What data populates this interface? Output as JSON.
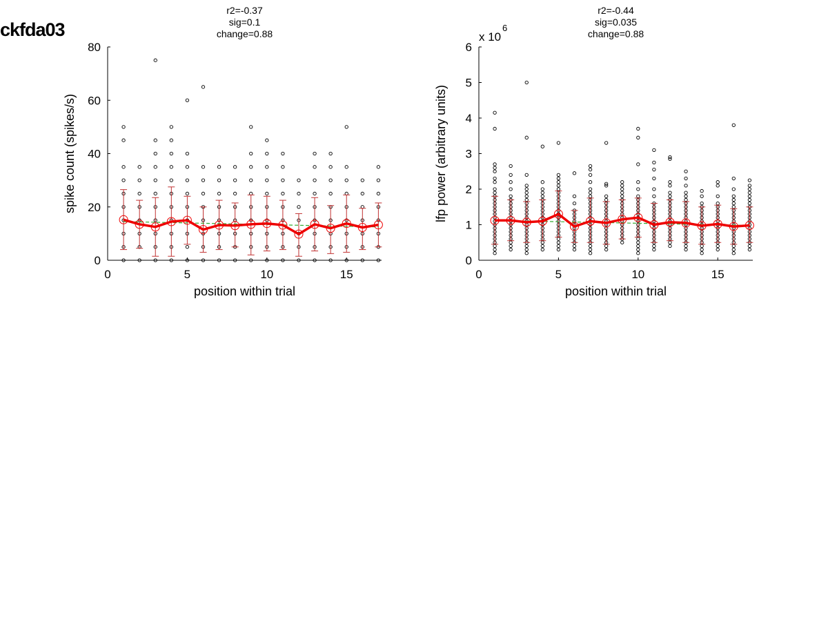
{
  "figure": {
    "title": "ckfda03"
  },
  "chart_data": [
    {
      "type": "scatter",
      "stats": [
        "r2=-0.37",
        "sig=0.1",
        "change=0.88"
      ],
      "xlabel": "position within trial",
      "ylabel": "spike count (spikes/s)",
      "xlim": [
        0,
        17.2
      ],
      "ylim": [
        0,
        80
      ],
      "x_ticks": [
        0,
        5,
        10,
        15
      ],
      "y_ticks": [
        0,
        20,
        40,
        60,
        80
      ],
      "x": [
        1,
        2,
        3,
        4,
        5,
        6,
        7,
        8,
        9,
        10,
        11,
        12,
        13,
        14,
        15,
        16,
        17
      ],
      "mean": [
        15.2,
        13.5,
        12.5,
        14.5,
        15.0,
        11.5,
        13.2,
        13.0,
        13.5,
        13.8,
        13.2,
        9.8,
        13.5,
        12.0,
        13.8,
        12.3,
        13.3
      ],
      "error_low": [
        4,
        4.5,
        1.5,
        1.5,
        6,
        3,
        4,
        5,
        2,
        3.5,
        4,
        1.5,
        3.5,
        2.5,
        3,
        4,
        5
      ],
      "error_high": [
        26.5,
        22.5,
        23.5,
        27.5,
        24,
        20,
        22.5,
        21.5,
        24.5,
        24,
        22.5,
        17.5,
        23.5,
        20.5,
        24.5,
        19.5,
        21.5
      ],
      "trend": [
        14.5,
        12.5
      ],
      "scatter_points": [
        [
          0,
          5,
          10,
          15,
          20,
          25,
          30,
          35,
          45,
          50
        ],
        [
          0,
          5,
          10,
          15,
          20,
          25,
          30,
          35
        ],
        [
          0,
          5,
          10,
          15,
          20,
          25,
          30,
          35,
          40,
          45,
          75
        ],
        [
          0,
          5,
          10,
          15,
          20,
          25,
          30,
          35,
          40,
          45,
          50
        ],
        [
          0,
          5,
          10,
          15,
          20,
          25,
          30,
          35,
          40,
          60
        ],
        [
          0,
          5,
          10,
          15,
          20,
          25,
          30,
          35,
          65
        ],
        [
          0,
          5,
          10,
          15,
          20,
          25,
          30,
          35
        ],
        [
          0,
          5,
          10,
          15,
          20,
          25,
          30,
          35
        ],
        [
          0,
          5,
          10,
          15,
          20,
          25,
          30,
          35,
          40,
          50
        ],
        [
          0,
          5,
          10,
          15,
          20,
          25,
          30,
          35,
          40,
          45
        ],
        [
          0,
          5,
          10,
          15,
          20,
          25,
          30,
          35,
          40
        ],
        [
          0,
          5,
          10,
          15,
          20,
          25,
          30
        ],
        [
          0,
          5,
          10,
          15,
          20,
          25,
          30,
          35,
          40
        ],
        [
          0,
          5,
          10,
          15,
          20,
          25,
          30,
          35,
          40
        ],
        [
          0,
          5,
          10,
          15,
          20,
          25,
          30,
          35,
          50
        ],
        [
          0,
          5,
          10,
          15,
          20,
          25,
          30
        ],
        [
          0,
          5,
          10,
          15,
          20,
          25,
          30,
          35
        ]
      ],
      "colors": {
        "mean_line": "#ee0000",
        "error_bars": "#c03030",
        "trend_line": "#33aa33",
        "points": "#000000"
      }
    },
    {
      "type": "scatter",
      "stats": [
        "r2=-0.44",
        "sig=0.035",
        "change=0.88"
      ],
      "xlabel": "position within trial",
      "ylabel": "lfp power (arbitrary units)",
      "y_multiplier": "x 10",
      "y_multiplier_exp": "6",
      "xlim": [
        0,
        17.2
      ],
      "ylim": [
        0,
        6
      ],
      "x_ticks": [
        0,
        5,
        10,
        15
      ],
      "y_ticks": [
        0,
        1,
        2,
        3,
        4,
        5,
        6
      ],
      "x": [
        1,
        2,
        3,
        4,
        5,
        6,
        7,
        8,
        9,
        10,
        11,
        12,
        13,
        14,
        15,
        16,
        17
      ],
      "mean": [
        1.12,
        1.12,
        1.07,
        1.1,
        1.3,
        0.95,
        1.1,
        1.05,
        1.15,
        1.2,
        1.0,
        1.07,
        1.05,
        0.97,
        1.02,
        0.95,
        0.98
      ],
      "error_low": [
        0.45,
        0.55,
        0.5,
        0.55,
        0.65,
        0.5,
        0.5,
        0.45,
        0.6,
        0.65,
        0.5,
        0.55,
        0.5,
        0.45,
        0.5,
        0.45,
        0.5
      ],
      "error_high": [
        1.8,
        1.7,
        1.65,
        1.7,
        1.95,
        1.4,
        1.75,
        1.65,
        1.7,
        1.75,
        1.6,
        1.7,
        1.65,
        1.5,
        1.55,
        1.45,
        1.5
      ],
      "trend": [
        1.12,
        0.98
      ],
      "scatter_points": [
        [
          0.2,
          0.3,
          0.4,
          0.5,
          0.6,
          0.7,
          0.8,
          0.9,
          1.0,
          1.1,
          1.2,
          1.3,
          1.4,
          1.5,
          1.6,
          1.7,
          1.8,
          1.9,
          2.0,
          2.2,
          2.3,
          2.5,
          2.6,
          2.7,
          3.7,
          4.15
        ],
        [
          0.3,
          0.4,
          0.5,
          0.6,
          0.7,
          0.8,
          0.9,
          1.0,
          1.1,
          1.2,
          1.3,
          1.4,
          1.5,
          1.6,
          1.7,
          1.8,
          2.0,
          2.2,
          2.4,
          2.65
        ],
        [
          0.2,
          0.3,
          0.4,
          0.5,
          0.6,
          0.7,
          0.8,
          0.9,
          1.0,
          1.1,
          1.2,
          1.3,
          1.4,
          1.5,
          1.6,
          1.7,
          1.8,
          1.9,
          2.0,
          2.1,
          2.4,
          3.45,
          5.0
        ],
        [
          0.3,
          0.4,
          0.5,
          0.6,
          0.7,
          0.8,
          0.9,
          1.0,
          1.1,
          1.2,
          1.3,
          1.4,
          1.5,
          1.6,
          1.7,
          1.8,
          1.9,
          2.0,
          2.2,
          3.2
        ],
        [
          0.3,
          0.4,
          0.5,
          0.6,
          0.7,
          0.8,
          0.9,
          1.0,
          1.1,
          1.2,
          1.3,
          1.4,
          1.5,
          1.6,
          1.7,
          1.8,
          1.9,
          2.0,
          2.1,
          2.2,
          2.3,
          2.4,
          3.3
        ],
        [
          0.3,
          0.4,
          0.5,
          0.6,
          0.7,
          0.8,
          0.9,
          1.0,
          1.1,
          1.2,
          1.3,
          1.4,
          1.6,
          1.8,
          2.45
        ],
        [
          0.2,
          0.3,
          0.4,
          0.5,
          0.6,
          0.7,
          0.8,
          0.9,
          1.0,
          1.1,
          1.2,
          1.3,
          1.4,
          1.5,
          1.6,
          1.7,
          1.8,
          1.9,
          2.0,
          2.2,
          2.4,
          2.55,
          2.65
        ],
        [
          0.3,
          0.4,
          0.5,
          0.6,
          0.7,
          0.8,
          0.9,
          1.0,
          1.1,
          1.2,
          1.3,
          1.4,
          1.5,
          1.6,
          1.7,
          1.8,
          2.1,
          2.15,
          3.3
        ],
        [
          0.5,
          0.6,
          0.7,
          0.8,
          0.9,
          1.0,
          1.1,
          1.2,
          1.3,
          1.4,
          1.5,
          1.6,
          1.7,
          1.8,
          1.9,
          2.0,
          2.1,
          2.2
        ],
        [
          0.2,
          0.3,
          0.4,
          0.5,
          0.6,
          0.7,
          0.8,
          0.9,
          1.0,
          1.1,
          1.2,
          1.3,
          1.4,
          1.5,
          1.6,
          1.7,
          1.8,
          2.0,
          2.2,
          2.7,
          3.45,
          3.7
        ],
        [
          0.3,
          0.4,
          0.5,
          0.6,
          0.7,
          0.8,
          0.9,
          1.0,
          1.1,
          1.2,
          1.3,
          1.4,
          1.5,
          1.6,
          1.8,
          2.0,
          2.3,
          2.55,
          2.75,
          3.1
        ],
        [
          0.4,
          0.5,
          0.6,
          0.7,
          0.8,
          0.9,
          1.0,
          1.1,
          1.2,
          1.3,
          1.4,
          1.5,
          1.6,
          1.7,
          1.8,
          1.9,
          2.1,
          2.2,
          2.85,
          2.9
        ],
        [
          0.3,
          0.4,
          0.5,
          0.6,
          0.7,
          0.8,
          0.9,
          1.0,
          1.1,
          1.2,
          1.3,
          1.4,
          1.5,
          1.6,
          1.7,
          1.8,
          1.9,
          2.1,
          2.3,
          2.5
        ],
        [
          0.2,
          0.3,
          0.4,
          0.5,
          0.6,
          0.7,
          0.8,
          0.9,
          1.0,
          1.1,
          1.2,
          1.3,
          1.4,
          1.5,
          1.6,
          1.8,
          1.95
        ],
        [
          0.3,
          0.4,
          0.5,
          0.6,
          0.7,
          0.8,
          0.9,
          1.0,
          1.1,
          1.2,
          1.3,
          1.4,
          1.5,
          1.6,
          1.8,
          2.1,
          2.2
        ],
        [
          0.2,
          0.3,
          0.4,
          0.5,
          0.6,
          0.7,
          0.8,
          0.9,
          1.0,
          1.1,
          1.2,
          1.3,
          1.4,
          1.5,
          1.6,
          1.7,
          1.8,
          2.0,
          2.3,
          3.8
        ],
        [
          0.3,
          0.4,
          0.5,
          0.6,
          0.7,
          0.8,
          0.9,
          1.0,
          1.1,
          1.2,
          1.3,
          1.4,
          1.5,
          1.6,
          1.7,
          1.8,
          1.9,
          2.0,
          2.1,
          2.25
        ]
      ],
      "colors": {
        "mean_line": "#ee0000",
        "error_bars": "#c03030",
        "trend_line": "#33aa33",
        "points": "#000000"
      }
    }
  ]
}
